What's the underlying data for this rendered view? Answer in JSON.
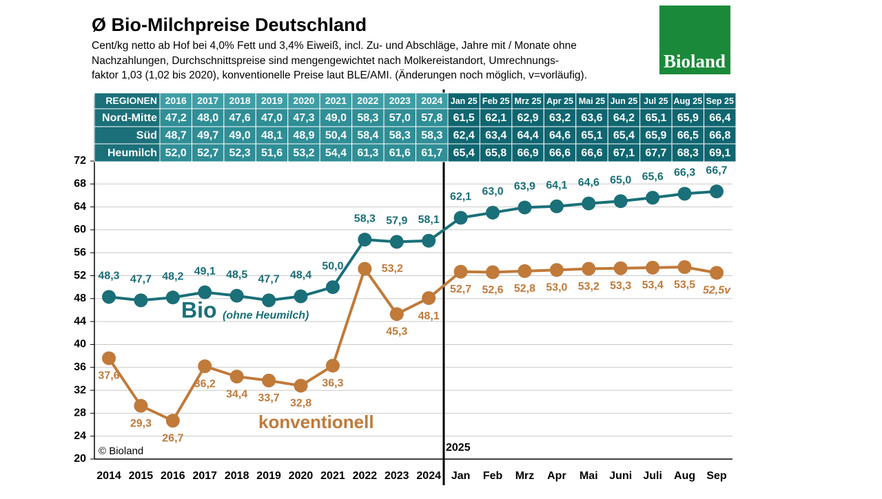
{
  "chart_data": {
    "type": "line",
    "title": "Ø Bio-Milchpreise Deutschland",
    "subtitle_lines": [
      "Cent/kg netto ab Hof bei 4,0% Fett und 3,4% Eiweiß, incl. Zu- und Abschläge, Jahre mit / Monate ohne",
      "Nachzahlungen, Durchschnittspreise sind mengengewichtet nach Molkereistandort, Umrechnungs-",
      "faktor 1,03 (1,02 bis 2020), konventionelle Preise laut BLE/AMI. (Änderungen noch möglich, v=vorläufig)."
    ],
    "categories": [
      "2014",
      "2015",
      "2016",
      "2017",
      "2018",
      "2019",
      "2020",
      "2021",
      "2022",
      "2023",
      "2024",
      "Jan",
      "Feb",
      "Mrz",
      "Apr",
      "Mai",
      "Juni",
      "Juli",
      "Aug",
      "Sep"
    ],
    "series": [
      {
        "name": "Bio",
        "note": "(ohne Heumilch)",
        "color": "#1a6f78",
        "values": [
          48.3,
          47.7,
          48.2,
          49.1,
          48.5,
          47.7,
          48.4,
          50.0,
          58.3,
          57.9,
          58.1,
          62.1,
          63.0,
          63.9,
          64.1,
          64.6,
          65.0,
          65.6,
          66.3,
          66.7
        ],
        "value_labels": [
          "48,3",
          "47,7",
          "48,2",
          "49,1",
          "48,5",
          "47,7",
          "48,4",
          "50,0",
          "58,3",
          "57,9",
          "58,1",
          "62,1",
          "63,0",
          "63,9",
          "64,1",
          "64,6",
          "65,0",
          "65,6",
          "66,3",
          "66,7"
        ]
      },
      {
        "name": "konventionell",
        "color": "#c07a3a",
        "values": [
          37.6,
          29.3,
          26.7,
          36.2,
          34.4,
          33.7,
          32.8,
          36.3,
          53.2,
          45.3,
          48.1,
          52.7,
          52.6,
          52.8,
          53.0,
          53.2,
          53.3,
          53.4,
          53.5,
          52.5
        ],
        "value_labels": [
          "37,6",
          "29,3",
          "26,7",
          "36,2",
          "34,4",
          "33,7",
          "32,8",
          "36,3",
          "53,2",
          "45,3",
          "48,1",
          "52,7",
          "52,6",
          "52,8",
          "53,0",
          "53,2",
          "53,3",
          "53,4",
          "53,5",
          "52,5v"
        ]
      }
    ],
    "ylim": [
      20,
      72
    ],
    "yticks": [
      20,
      24,
      28,
      32,
      36,
      40,
      44,
      48,
      52,
      56,
      60,
      64,
      68,
      72
    ],
    "grid": true,
    "divider_label": "2025",
    "copyright": "© Bioland"
  },
  "logo": "Bioland",
  "table": {
    "header": [
      "REGIONEN",
      "2016",
      "2017",
      "2018",
      "2019",
      "2020",
      "2021",
      "2022",
      "2023",
      "2024",
      "Jan 25",
      "Feb 25",
      "Mrz 25",
      "Apr 25",
      "Mai 25",
      "Jun 25",
      "Jul 25",
      "Aug 25",
      "Sep 25"
    ],
    "rows": [
      [
        "Nord-Mitte",
        "47,2",
        "48,0",
        "47,6",
        "47,0",
        "47,3",
        "49,0",
        "58,3",
        "57,0",
        "57,8",
        "61,5",
        "62,1",
        "62,9",
        "63,2",
        "63,6",
        "64,2",
        "65,1",
        "65,9",
        "66,4"
      ],
      [
        "Süd",
        "48,7",
        "49,7",
        "49,0",
        "48,1",
        "48,9",
        "50,4",
        "58,4",
        "58,3",
        "58,3",
        "62,4",
        "63,4",
        "64,4",
        "64,6",
        "65,1",
        "65,4",
        "65,9",
        "66,5",
        "66,8"
      ],
      [
        "Heumilch",
        "52,0",
        "52,7",
        "52,3",
        "51,6",
        "53,2",
        "54,4",
        "61,3",
        "61,6",
        "61,7",
        "65,4",
        "65,8",
        "66,9",
        "66,6",
        "66,6",
        "67,1",
        "67,7",
        "68,3",
        "69,1"
      ]
    ]
  }
}
